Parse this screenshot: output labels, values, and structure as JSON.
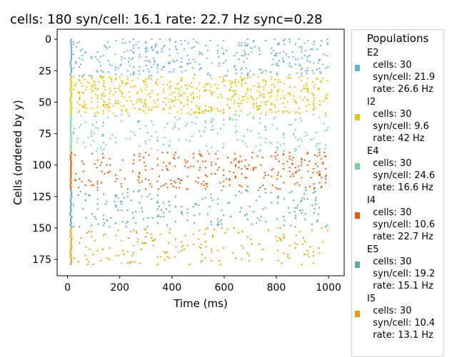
{
  "chart_data": {
    "type": "scatter",
    "title": "cells: 180   syn/cell: 16.1   rate: 22.7 Hz    sync=0.28",
    "xlabel": "Time (ms)",
    "ylabel": "Cells (ordered by y)",
    "xlim": [
      -40,
      1060
    ],
    "ylim": [
      188,
      -8
    ],
    "y_inverted": true,
    "xticks": [
      0,
      200,
      400,
      600,
      800,
      1000
    ],
    "yticks": [
      0,
      25,
      50,
      75,
      100,
      125,
      150,
      175
    ],
    "grid": false,
    "time_range_ms": [
      10,
      1000
    ],
    "legend": {
      "title": "Populations",
      "placement": "outside-right"
    },
    "series": [
      {
        "name": "E2",
        "stats": "  cells: 30\n  syn/cell: 21.9\n  rate: 26.6 Hz",
        "cells": 30,
        "syn_per_cell": 21.9,
        "rate_hz": 26.6,
        "neuron_range": [
          0,
          29
        ],
        "color": "#6baed6"
      },
      {
        "name": "I2",
        "stats": "  cells: 30\n  syn/cell: 9.6\n  rate: 42 Hz",
        "cells": 30,
        "syn_per_cell": 9.6,
        "rate_hz": 42,
        "neuron_range": [
          30,
          59
        ],
        "color": "#e6c212"
      },
      {
        "name": "E4",
        "stats": "  cells: 30\n  syn/cell: 24.6\n  rate: 16.6 Hz",
        "cells": 30,
        "syn_per_cell": 24.6,
        "rate_hz": 16.6,
        "neuron_range": [
          60,
          89
        ],
        "color": "#74d69c"
      },
      {
        "name": "I4",
        "stats": "  cells: 30\n  syn/cell: 10.6\n  rate: 22.7 Hz",
        "cells": 30,
        "syn_per_cell": 10.6,
        "rate_hz": 22.7,
        "neuron_range": [
          90,
          119
        ],
        "color": "#e05a0c"
      },
      {
        "name": "E5",
        "stats": "  cells: 30\n  syn/cell: 19.2\n  rate: 15.1 Hz",
        "cells": 30,
        "syn_per_cell": 19.2,
        "rate_hz": 15.1,
        "neuron_range": [
          120,
          149
        ],
        "color": "#56aaa8"
      },
      {
        "name": "I5",
        "stats": "  cells: 30\n  syn/cell: 10.4\n  rate: 13.1 Hz",
        "cells": 30,
        "syn_per_cell": 10.4,
        "rate_hz": 13.1,
        "neuron_range": [
          150,
          179
        ],
        "color": "#e09f10"
      }
    ]
  }
}
